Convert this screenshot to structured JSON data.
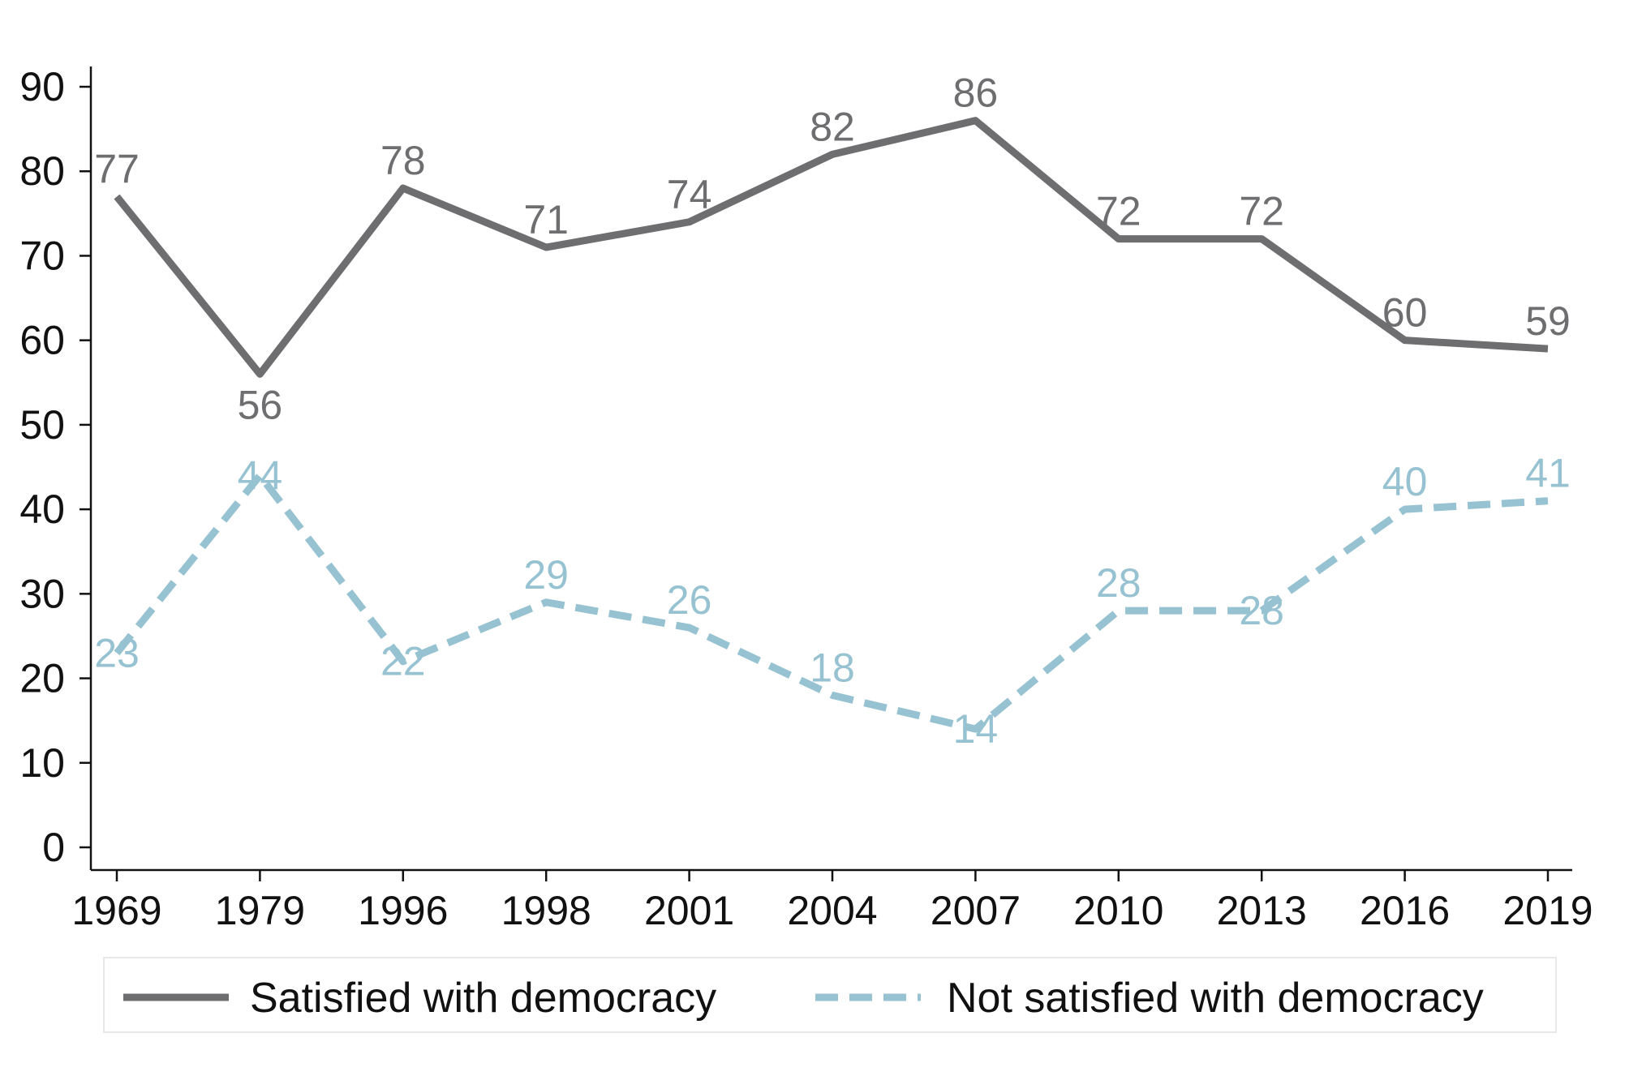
{
  "chart_data": {
    "type": "line",
    "title": "",
    "xlabel": "",
    "ylabel": "",
    "categories": [
      "1969",
      "1979",
      "1996",
      "1998",
      "2001",
      "2004",
      "2007",
      "2010",
      "2013",
      "2016",
      "2019"
    ],
    "ylim": [
      0,
      90
    ],
    "yticks": [
      0,
      10,
      20,
      30,
      40,
      50,
      60,
      70,
      80,
      90
    ],
    "grid": false,
    "legend_position": "bottom",
    "series": [
      {
        "name": "Satisfied with democracy",
        "values": [
          77,
          56,
          78,
          71,
          74,
          82,
          86,
          72,
          72,
          60,
          59
        ],
        "labels": [
          "77",
          "56",
          "78",
          "71",
          "74",
          "82",
          "86",
          "72",
          "72",
          "60",
          "59"
        ],
        "color": "#6e6e70",
        "style": "solid"
      },
      {
        "name": "Not satisfied with democracy",
        "values": [
          23,
          44,
          22,
          29,
          26,
          18,
          14,
          28,
          28,
          40,
          41
        ],
        "labels": [
          "23",
          "44",
          "22",
          "29",
          "26",
          "18",
          "14",
          "28",
          "28",
          "40",
          "41"
        ],
        "color": "#96c2d1",
        "style": "dashed"
      }
    ]
  }
}
